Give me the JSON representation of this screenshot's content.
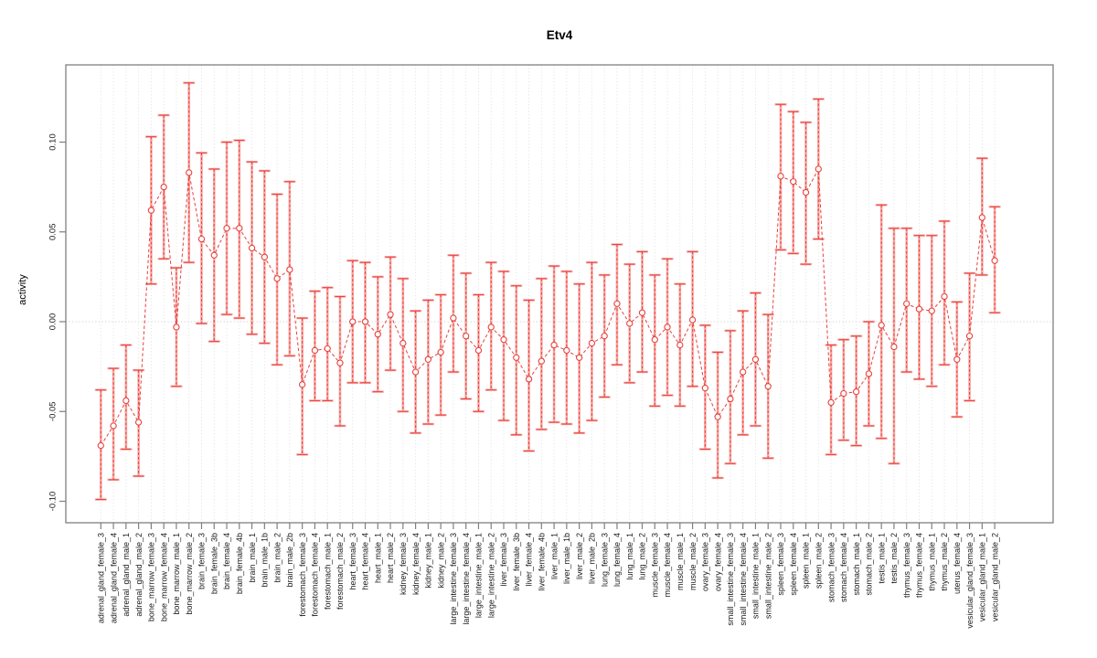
{
  "chart_data": {
    "type": "scatter",
    "title": "Etv4",
    "ylabel": "activity",
    "xlabel": "",
    "ylim": [
      -0.109,
      0.143
    ],
    "yticks": [
      0.1,
      0.05,
      0.0,
      -0.05,
      -0.1
    ],
    "ytick_labels": [
      "0.10",
      "0.05",
      "0.00",
      "-0.05",
      "-0.10"
    ],
    "grid": "vertical-dotted-per-category, horizontal-dotted-at-zero",
    "legend_position": "none",
    "marker": "open-circle",
    "line_style": "dashed",
    "error_bars": true,
    "colors": {
      "series_red": "#e8413c",
      "series_pink": "#f7a8a4",
      "gridline": "#dcdcdc",
      "zero_line": "#c9c9c9",
      "axis": "#7f7f7f",
      "tick_text": "#1a1a1a",
      "title_text": "#000000"
    },
    "points": [
      {
        "label": "adrenal_gland_female_3",
        "value": -0.069,
        "lo": -0.099,
        "hi": -0.038
      },
      {
        "label": "adrenal_gland_female_4",
        "value": -0.058,
        "lo": -0.088,
        "hi": -0.026
      },
      {
        "label": "adrenal_gland_male_1",
        "value": -0.044,
        "lo": -0.071,
        "hi": -0.013
      },
      {
        "label": "adrenal_gland_male_2",
        "value": -0.056,
        "lo": -0.086,
        "hi": -0.027
      },
      {
        "label": "bone_marrow_female_3",
        "value": 0.062,
        "lo": 0.021,
        "hi": 0.103
      },
      {
        "label": "bone_marrow_female_4",
        "value": 0.075,
        "lo": 0.035,
        "hi": 0.115
      },
      {
        "label": "bone_marrow_male_1",
        "value": -0.003,
        "lo": -0.036,
        "hi": 0.03
      },
      {
        "label": "bone_marrow_male_2",
        "value": 0.083,
        "lo": 0.033,
        "hi": 0.133
      },
      {
        "label": "brain_female_3",
        "value": 0.046,
        "lo": -0.001,
        "hi": 0.094
      },
      {
        "label": "brain_female_3b",
        "value": 0.037,
        "lo": -0.011,
        "hi": 0.085
      },
      {
        "label": "brain_female_4",
        "value": 0.052,
        "lo": 0.004,
        "hi": 0.1
      },
      {
        "label": "brain_female_4b",
        "value": 0.052,
        "lo": 0.002,
        "hi": 0.101
      },
      {
        "label": "brain_male_1",
        "value": 0.041,
        "lo": -0.007,
        "hi": 0.089
      },
      {
        "label": "brain_male_1b",
        "value": 0.036,
        "lo": -0.012,
        "hi": 0.084
      },
      {
        "label": "brain_male_2",
        "value": 0.024,
        "lo": -0.024,
        "hi": 0.071
      },
      {
        "label": "brain_male_2b",
        "value": 0.029,
        "lo": -0.019,
        "hi": 0.078
      },
      {
        "label": "forestomach_female_3",
        "value": -0.035,
        "lo": -0.074,
        "hi": 0.002
      },
      {
        "label": "forestomach_female_4",
        "value": -0.016,
        "lo": -0.044,
        "hi": 0.017
      },
      {
        "label": "forestomach_male_1",
        "value": -0.015,
        "lo": -0.044,
        "hi": 0.019
      },
      {
        "label": "forestomach_male_2",
        "value": -0.023,
        "lo": -0.058,
        "hi": 0.014
      },
      {
        "label": "heart_female_3",
        "value": 0.0,
        "lo": -0.034,
        "hi": 0.034
      },
      {
        "label": "heart_female_4",
        "value": 0.0,
        "lo": -0.034,
        "hi": 0.033
      },
      {
        "label": "heart_male_1",
        "value": -0.007,
        "lo": -0.039,
        "hi": 0.025
      },
      {
        "label": "heart_male_2",
        "value": 0.004,
        "lo": -0.027,
        "hi": 0.036
      },
      {
        "label": "kidney_female_3",
        "value": -0.012,
        "lo": -0.05,
        "hi": 0.024
      },
      {
        "label": "kidney_female_4",
        "value": -0.028,
        "lo": -0.062,
        "hi": 0.006
      },
      {
        "label": "kidney_male_1",
        "value": -0.021,
        "lo": -0.057,
        "hi": 0.012
      },
      {
        "label": "kidney_male_2",
        "value": -0.017,
        "lo": -0.052,
        "hi": 0.015
      },
      {
        "label": "large_intestine_female_3",
        "value": 0.002,
        "lo": -0.028,
        "hi": 0.037
      },
      {
        "label": "large_intestine_female_4",
        "value": -0.008,
        "lo": -0.043,
        "hi": 0.027
      },
      {
        "label": "large_intestine_male_1",
        "value": -0.016,
        "lo": -0.05,
        "hi": 0.015
      },
      {
        "label": "large_intestine_male_2",
        "value": -0.003,
        "lo": -0.038,
        "hi": 0.033
      },
      {
        "label": "liver_female_3",
        "value": -0.01,
        "lo": -0.055,
        "hi": 0.028
      },
      {
        "label": "liver_female_3b",
        "value": -0.02,
        "lo": -0.063,
        "hi": 0.02
      },
      {
        "label": "liver_female_4",
        "value": -0.032,
        "lo": -0.072,
        "hi": 0.012
      },
      {
        "label": "liver_female_4b",
        "value": -0.022,
        "lo": -0.06,
        "hi": 0.024
      },
      {
        "label": "liver_male_1",
        "value": -0.013,
        "lo": -0.056,
        "hi": 0.031
      },
      {
        "label": "liver_male_1b",
        "value": -0.016,
        "lo": -0.057,
        "hi": 0.028
      },
      {
        "label": "liver_male_2",
        "value": -0.02,
        "lo": -0.062,
        "hi": 0.021
      },
      {
        "label": "liver_male_2b",
        "value": -0.012,
        "lo": -0.055,
        "hi": 0.033
      },
      {
        "label": "lung_female_3",
        "value": -0.008,
        "lo": -0.042,
        "hi": 0.026
      },
      {
        "label": "lung_female_4",
        "value": 0.01,
        "lo": -0.024,
        "hi": 0.043
      },
      {
        "label": "lung_male_1",
        "value": -0.001,
        "lo": -0.034,
        "hi": 0.032
      },
      {
        "label": "lung_male_2",
        "value": 0.005,
        "lo": -0.028,
        "hi": 0.039
      },
      {
        "label": "muscle_female_3",
        "value": -0.01,
        "lo": -0.047,
        "hi": 0.026
      },
      {
        "label": "muscle_female_4",
        "value": -0.003,
        "lo": -0.041,
        "hi": 0.035
      },
      {
        "label": "muscle_male_1",
        "value": -0.013,
        "lo": -0.047,
        "hi": 0.021
      },
      {
        "label": "muscle_male_2",
        "value": 0.001,
        "lo": -0.036,
        "hi": 0.039
      },
      {
        "label": "ovary_female_3",
        "value": -0.037,
        "lo": -0.071,
        "hi": -0.002
      },
      {
        "label": "ovary_female_4",
        "value": -0.053,
        "lo": -0.087,
        "hi": -0.017
      },
      {
        "label": "small_intestine_female_3",
        "value": -0.043,
        "lo": -0.079,
        "hi": -0.005
      },
      {
        "label": "small_intestine_female_4",
        "value": -0.028,
        "lo": -0.063,
        "hi": 0.006
      },
      {
        "label": "small_intestine_male_1",
        "value": -0.021,
        "lo": -0.058,
        "hi": 0.016
      },
      {
        "label": "small_intestine_male_2",
        "value": -0.036,
        "lo": -0.076,
        "hi": 0.004
      },
      {
        "label": "spleen_female_3",
        "value": 0.081,
        "lo": 0.04,
        "hi": 0.121
      },
      {
        "label": "spleen_female_4",
        "value": 0.078,
        "lo": 0.038,
        "hi": 0.117
      },
      {
        "label": "spleen_male_1",
        "value": 0.072,
        "lo": 0.032,
        "hi": 0.111
      },
      {
        "label": "spleen_male_2",
        "value": 0.085,
        "lo": 0.046,
        "hi": 0.124
      },
      {
        "label": "stomach_female_3",
        "value": -0.045,
        "lo": -0.074,
        "hi": -0.013
      },
      {
        "label": "stomach_female_4",
        "value": -0.04,
        "lo": -0.066,
        "hi": -0.01
      },
      {
        "label": "stomach_male_1",
        "value": -0.039,
        "lo": -0.069,
        "hi": -0.008
      },
      {
        "label": "stomach_male_2",
        "value": -0.029,
        "lo": -0.058,
        "hi": 0.0
      },
      {
        "label": "testis_male_1",
        "value": -0.002,
        "lo": -0.065,
        "hi": 0.065
      },
      {
        "label": "testis_male_2",
        "value": -0.014,
        "lo": -0.079,
        "hi": 0.052
      },
      {
        "label": "thymus_female_3",
        "value": 0.01,
        "lo": -0.028,
        "hi": 0.052
      },
      {
        "label": "thymus_female_4",
        "value": 0.007,
        "lo": -0.032,
        "hi": 0.048
      },
      {
        "label": "thymus_male_1",
        "value": 0.006,
        "lo": -0.036,
        "hi": 0.048
      },
      {
        "label": "thymus_male_2",
        "value": 0.014,
        "lo": -0.024,
        "hi": 0.056
      },
      {
        "label": "uterus_female_4",
        "value": -0.021,
        "lo": -0.053,
        "hi": 0.011
      },
      {
        "label": "vesicular_gland_female_3",
        "value": -0.008,
        "lo": -0.044,
        "hi": 0.027
      },
      {
        "label": "vesicular_gland_male_1",
        "value": 0.058,
        "lo": 0.026,
        "hi": 0.091
      },
      {
        "label": "vesicular_gland_male_2",
        "value": 0.034,
        "lo": 0.005,
        "hi": 0.064
      }
    ]
  }
}
